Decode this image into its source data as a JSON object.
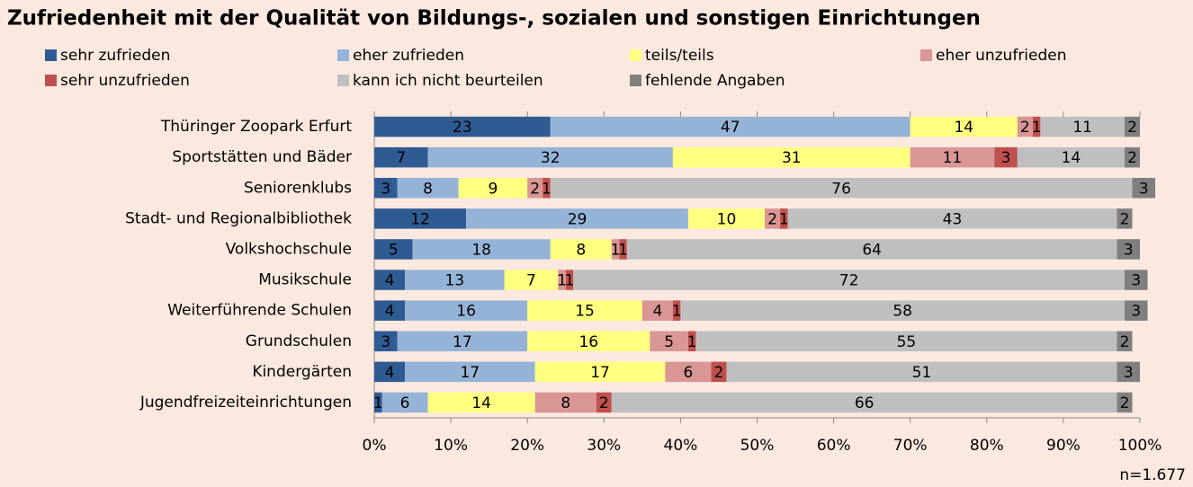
{
  "chart_data": {
    "type": "stacked-bar-horizontal",
    "title": "Zufriedenheit mit der Qualität von Bildungs-, sozialen und sonstigen Einrichtungen",
    "note": "n=1.677",
    "categories": [
      "Thüringer Zoopark Erfurt",
      "Sportstätten und Bäder",
      "Seniorenklubs",
      "Stadt- und Regionalbibliothek",
      "Volkshochschule",
      "Musikschule",
      "Weiterführende Schulen",
      "Grundschulen",
      "Kindergärten",
      "Jugendfreizeiteinrichtungen"
    ],
    "series": [
      {
        "name": "sehr zufrieden",
        "color": "#2f5b93",
        "values": [
          23,
          7,
          3,
          12,
          5,
          4,
          4,
          3,
          4,
          1
        ]
      },
      {
        "name": "eher zufrieden",
        "color": "#95b3d7",
        "values": [
          47,
          32,
          8,
          29,
          18,
          13,
          16,
          17,
          17,
          6
        ]
      },
      {
        "name": "teils/teils",
        "color": "#ffff80",
        "values": [
          14,
          31,
          9,
          10,
          8,
          7,
          15,
          16,
          17,
          14
        ]
      },
      {
        "name": "eher unzufrieden",
        "color": "#d99694",
        "values": [
          2,
          11,
          2,
          2,
          1,
          1,
          4,
          5,
          6,
          8
        ]
      },
      {
        "name": "sehr unzufrieden",
        "color": "#c0504d",
        "values": [
          1,
          3,
          1,
          1,
          1,
          1,
          1,
          1,
          2,
          2
        ]
      },
      {
        "name": "kann ich nicht beurteilen",
        "color": "#bfbfbf",
        "values": [
          11,
          14,
          76,
          43,
          64,
          72,
          58,
          55,
          51,
          66
        ]
      },
      {
        "name": "fehlende Angaben",
        "color": "#7f7f7f",
        "values": [
          2,
          2,
          3,
          2,
          3,
          3,
          3,
          2,
          3,
          2
        ]
      }
    ],
    "xlim": [
      0,
      100
    ],
    "xticks": [
      {
        "value": 0,
        "label": "0%"
      },
      {
        "value": 10,
        "label": "10%"
      },
      {
        "value": 20,
        "label": "20%"
      },
      {
        "value": 30,
        "label": "30%"
      },
      {
        "value": 40,
        "label": "40%"
      },
      {
        "value": 50,
        "label": "50%"
      },
      {
        "value": 60,
        "label": "60%"
      },
      {
        "value": 70,
        "label": "70%"
      },
      {
        "value": 80,
        "label": "80%"
      },
      {
        "value": 90,
        "label": "90%"
      },
      {
        "value": 100,
        "label": "100%"
      }
    ],
    "legend": "top"
  }
}
